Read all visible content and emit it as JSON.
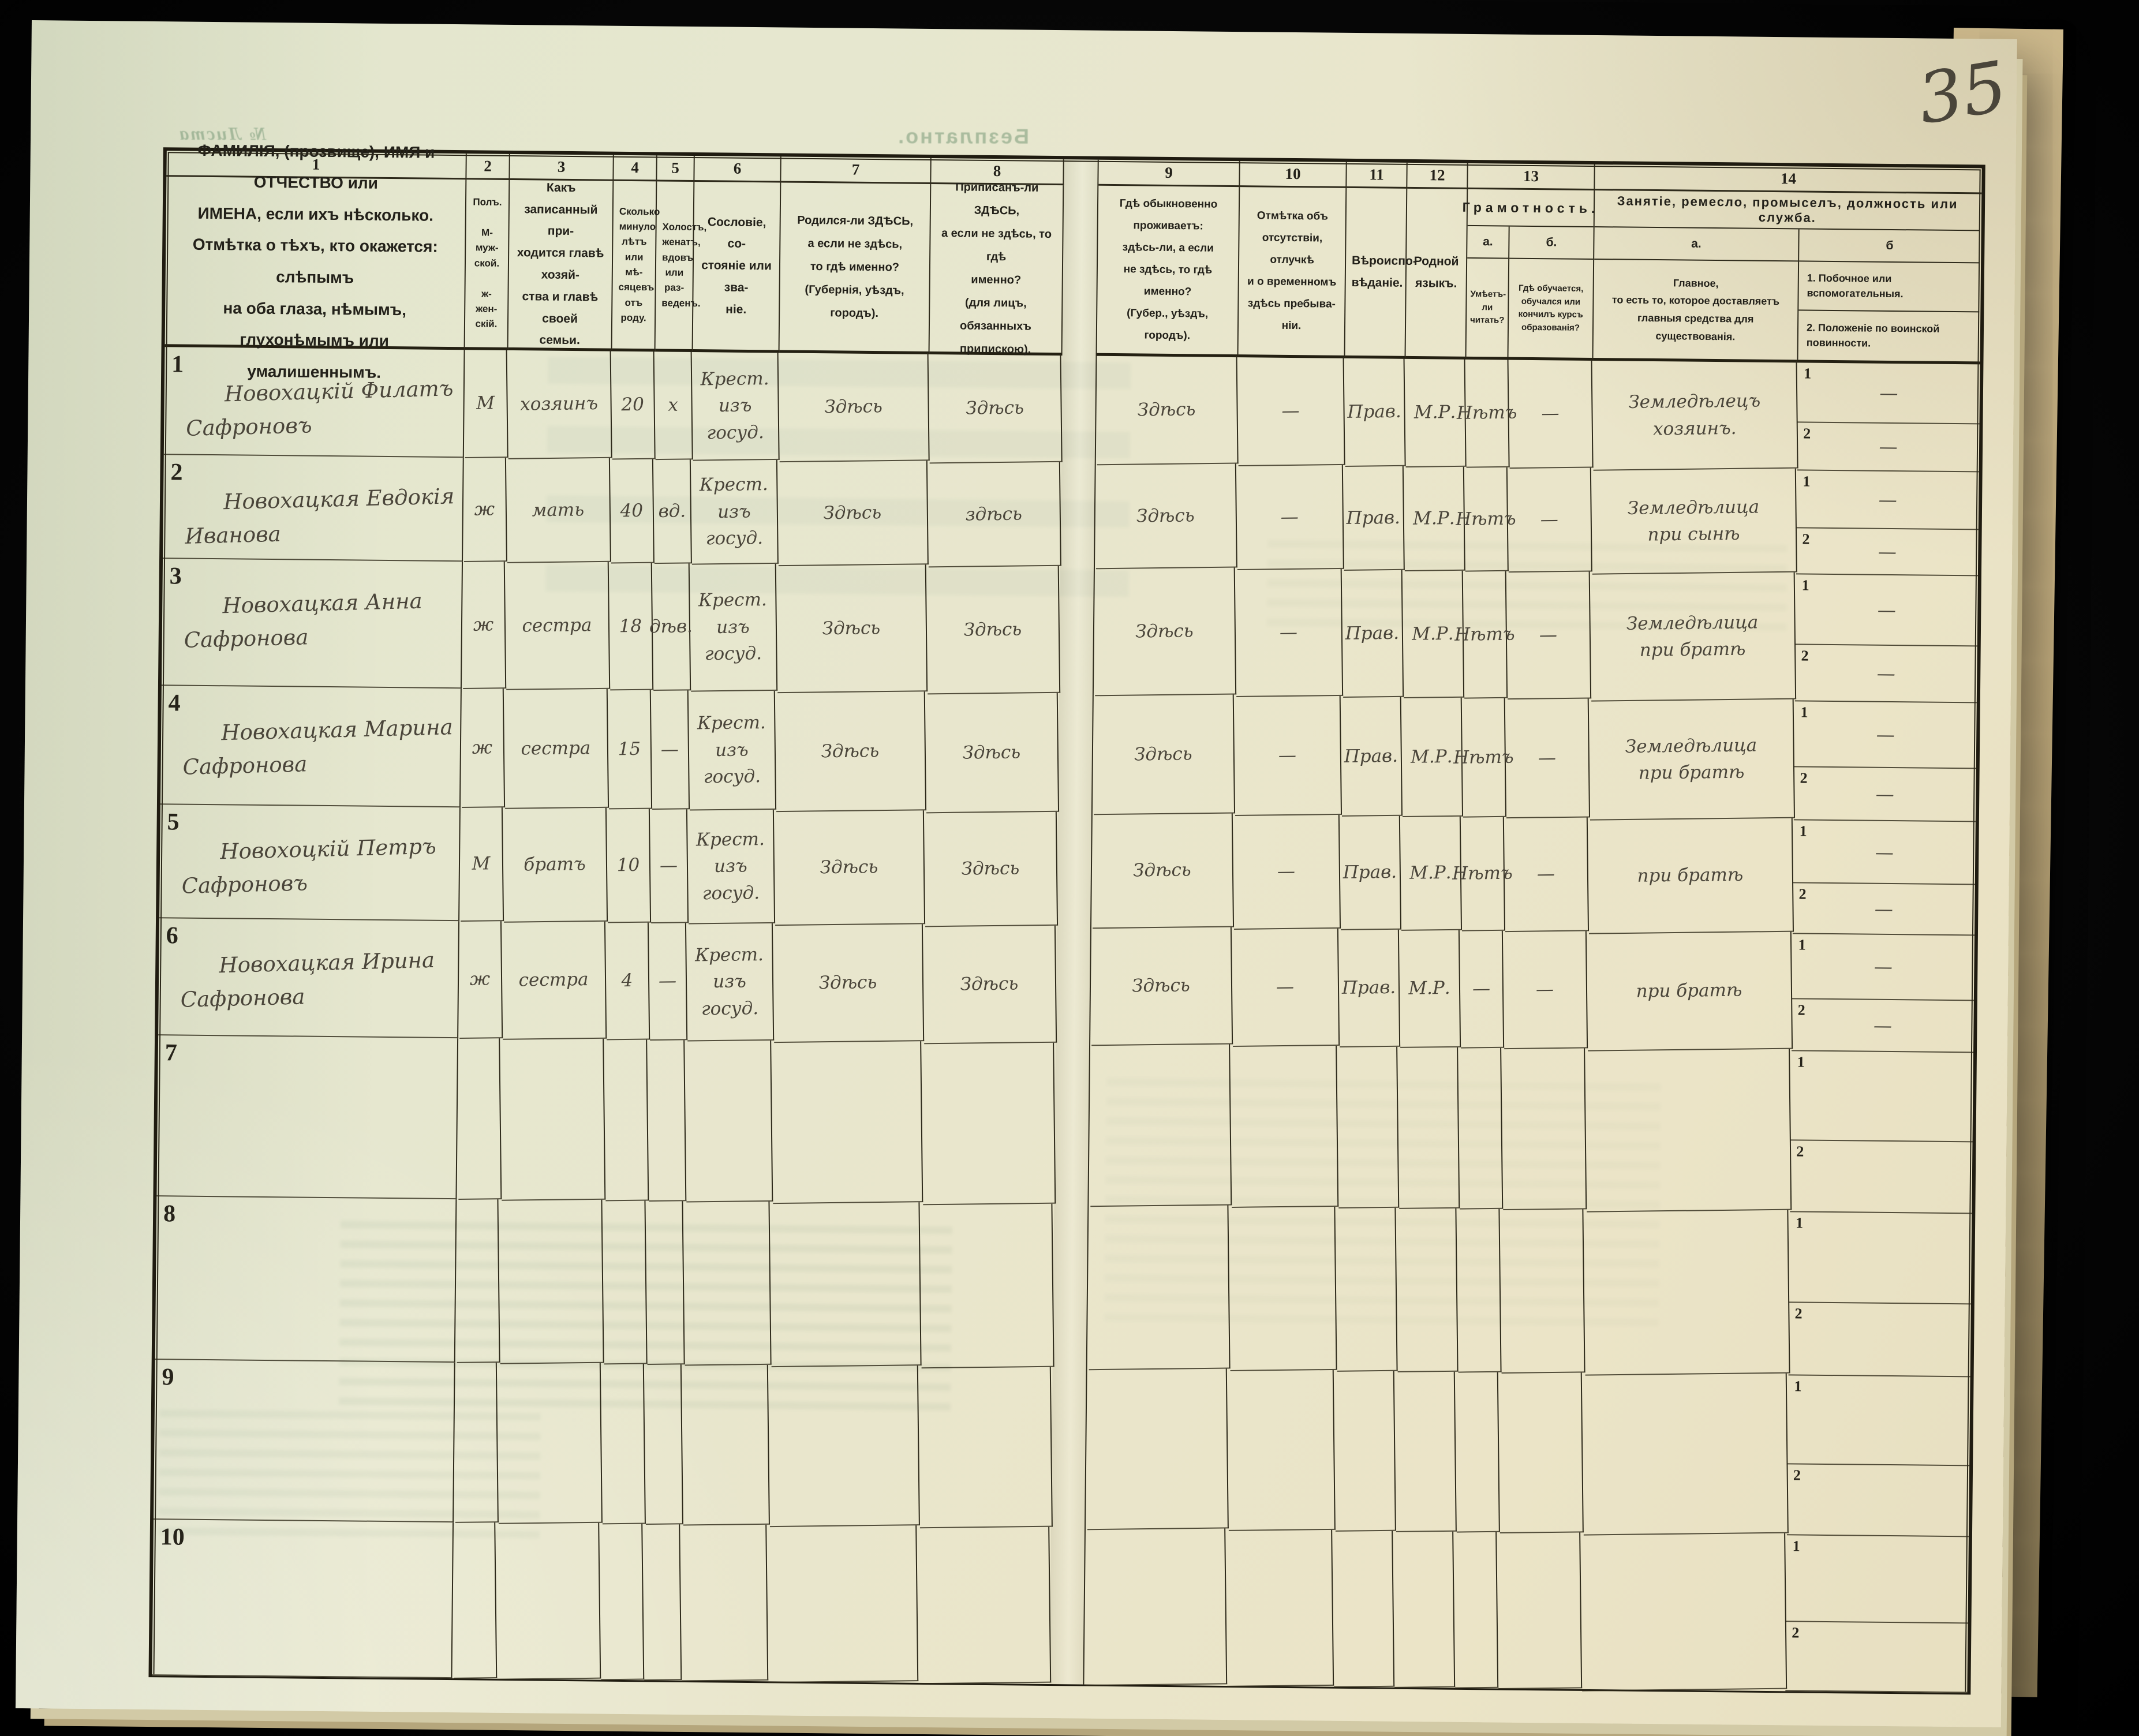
{
  "page": {
    "sheet_number": "35",
    "ghost_free": "Безплатно.",
    "ghost_sheet_no": "№ Листа"
  },
  "table": {
    "column_numbers": [
      "1",
      "2",
      "3",
      "4",
      "5",
      "6",
      "7",
      "8",
      "9",
      "10",
      "11",
      "12",
      "13",
      "14"
    ],
    "headers": {
      "c1": "ФАМИЛІЯ, (прозвище), ИМЯ и ОТЧЕСТВО или\nИМЕНА, если ихъ нѣсколько.\nОтмѣтка о тѣхъ, кто окажется: слѣпымъ\nна оба глаза, нѣмымъ, глухонѣмымъ или\nумалишеннымъ.",
      "c2": "Полъ.\n\nМ-муж-\nской.\n\nж-жен-\nскій.",
      "c3": "Какъ записанный при-\nходится главѣ хозяй-\nства и главѣ своей\nсемьи.",
      "c4": "Сколько\nминуло\nлѣтъ\nили мѣ-\nсяцевъ\nотъ роду.",
      "c5": "Холостъ,\nженатъ,\nвдовъ\nили раз-\nведенъ.",
      "c6": "Сословіе, со-\nстояніе или зва-\nніе.",
      "c7": "Родился-ли ЗДѢСЬ,\nа если не здѣсь,\nто гдѣ именно?\n(Губернія, уѣздъ, городъ).",
      "c8": "Приписанъ-ли ЗДѢСЬ,\nа если не здѣсь, то гдѣ\nименно?\n(для лицъ, обязанныхъ\nприпискою).",
      "c9": "Гдѣ обыкновенно\nпроживаетъ:\nздѣсь-ли, а если\nне здѣсь, то гдѣ\nименно?\n(Губер., уѣздъ, городъ).",
      "c10": "Отмѣтка объ\nотсутствіи, отлучкѣ\nи о временномъ\nздѣсь пребыва-\nніи.",
      "c11": "Вѣроиспо-\nвѣданіе.",
      "c12": "Родной\nязыкъ.",
      "c13_title": "Грамотность.",
      "c13a_label": "а.",
      "c13b_label": "б.",
      "c13a": "Умѣетъ-\nли\nчитать?",
      "c13b": "Гдѣ обучается,\nобучался или\nкончилъ курсъ\nобразованія?",
      "c14_title": "Занятіе, ремесло, промыселъ, должность или служба.",
      "c14a_label": "а.",
      "c14b_label": "б",
      "c14a": "Главное,\nто есть то, которое доставляетъ\nглавныя средства для существованія.",
      "c14b_1": "1.  Побочное или вспомогательныя.",
      "c14b_2": "2.  Положеніе по воинской повинности."
    },
    "sub_row_labels": [
      "1",
      "2"
    ],
    "rows": [
      {
        "num": "1",
        "name": "Новохацкій Филатъ",
        "name2": "Сафроновъ",
        "sex": "М",
        "relation": "хозяинъ",
        "age": "20",
        "marital": "х",
        "estate": "Крест.\nизъ госуд.",
        "born": "Здѣсь",
        "registered": "Здѣсь",
        "resides": "Здѣсь",
        "absence": "—",
        "religion": "Прав.",
        "language": "М.Р.",
        "literacy": "Нѣтъ",
        "education": "—",
        "occupation": "Земледѣлецъ\nхозяинъ.",
        "side1": "—",
        "side2": "—"
      },
      {
        "num": "2",
        "name": "Новохацкая Евдокія",
        "name2": "Иванова",
        "sex": "ж",
        "relation": "мать",
        "age": "40",
        "marital": "вд.",
        "estate": "Крест.\nизъ госуд.",
        "born": "Здѣсь",
        "registered": "здѣсь",
        "resides": "Здѣсь",
        "absence": "—",
        "religion": "Прав.",
        "language": "М.Р.",
        "literacy": "Нѣтъ",
        "education": "—",
        "occupation": "Земледѣлица\nпри сынѣ",
        "side1": "—",
        "side2": "—"
      },
      {
        "num": "3",
        "name": "Новохацкая Анна",
        "name2": "Сафронова",
        "sex": "ж",
        "relation": "сестра",
        "age": "18",
        "marital": "дѣв.",
        "estate": "Крест.\nизъ госуд.",
        "born": "Здѣсь",
        "registered": "Здѣсь",
        "resides": "Здѣсь",
        "absence": "—",
        "religion": "Прав.",
        "language": "М.Р.",
        "literacy": "Нѣтъ",
        "education": "—",
        "occupation": "Земледѣлица\nпри братѣ",
        "side1": "—",
        "side2": "—"
      },
      {
        "num": "4",
        "name": "Новохацкая Марина",
        "name2": "Сафронова",
        "sex": "ж",
        "relation": "сестра",
        "age": "15",
        "marital": "—",
        "estate": "Крест.\nизъ госуд.",
        "born": "Здѣсь",
        "registered": "Здѣсь",
        "resides": "Здѣсь",
        "absence": "—",
        "religion": "Прав.",
        "language": "М.Р.",
        "literacy": "Нѣтъ",
        "education": "—",
        "occupation": "Земледѣлица\nпри братѣ",
        "side1": "—",
        "side2": "—"
      },
      {
        "num": "5",
        "name": "Новохоцкій Петръ",
        "name2": "Сафроновъ",
        "sex": "М",
        "relation": "братъ",
        "age": "10",
        "marital": "—",
        "estate": "Крест.\nизъ госуд.",
        "born": "Здѣсь",
        "registered": "Здѣсь",
        "resides": "Здѣсь",
        "absence": "—",
        "religion": "Прав.",
        "language": "М.Р.",
        "literacy": "Нѣтъ",
        "education": "—",
        "occupation": "при братѣ",
        "side1": "—",
        "side2": "—"
      },
      {
        "num": "6",
        "name": "Новохацкая Ирина",
        "name2": "Сафронова",
        "sex": "ж",
        "relation": "сестра",
        "age": "4",
        "marital": "—",
        "estate": "Крест.\nизъ госуд.",
        "born": "Здѣсь",
        "registered": "Здѣсь",
        "resides": "Здѣсь",
        "absence": "—",
        "religion": "Прав.",
        "language": "М.Р.",
        "literacy": "—",
        "education": "—",
        "occupation": "при братѣ",
        "side1": "—",
        "side2": "—"
      },
      {
        "num": "7",
        "name": "",
        "name2": "",
        "sex": "",
        "relation": "",
        "age": "",
        "marital": "",
        "estate": "",
        "born": "",
        "registered": "",
        "resides": "",
        "absence": "",
        "religion": "",
        "language": "",
        "literacy": "",
        "education": "",
        "occupation": "",
        "side1": "",
        "side2": ""
      },
      {
        "num": "8",
        "name": "",
        "name2": "",
        "sex": "",
        "relation": "",
        "age": "",
        "marital": "",
        "estate": "",
        "born": "",
        "registered": "",
        "resides": "",
        "absence": "",
        "religion": "",
        "language": "",
        "literacy": "",
        "education": "",
        "occupation": "",
        "side1": "",
        "side2": ""
      },
      {
        "num": "9",
        "name": "",
        "name2": "",
        "sex": "",
        "relation": "",
        "age": "",
        "marital": "",
        "estate": "",
        "born": "",
        "registered": "",
        "resides": "",
        "absence": "",
        "religion": "",
        "language": "",
        "literacy": "",
        "education": "",
        "occupation": "",
        "side1": "",
        "side2": ""
      },
      {
        "num": "10",
        "name": "",
        "name2": "",
        "sex": "",
        "relation": "",
        "age": "",
        "marital": "",
        "estate": "",
        "born": "",
        "registered": "",
        "resides": "",
        "absence": "",
        "religion": "",
        "language": "",
        "literacy": "",
        "education": "",
        "occupation": "",
        "side1": "",
        "side2": ""
      }
    ]
  }
}
